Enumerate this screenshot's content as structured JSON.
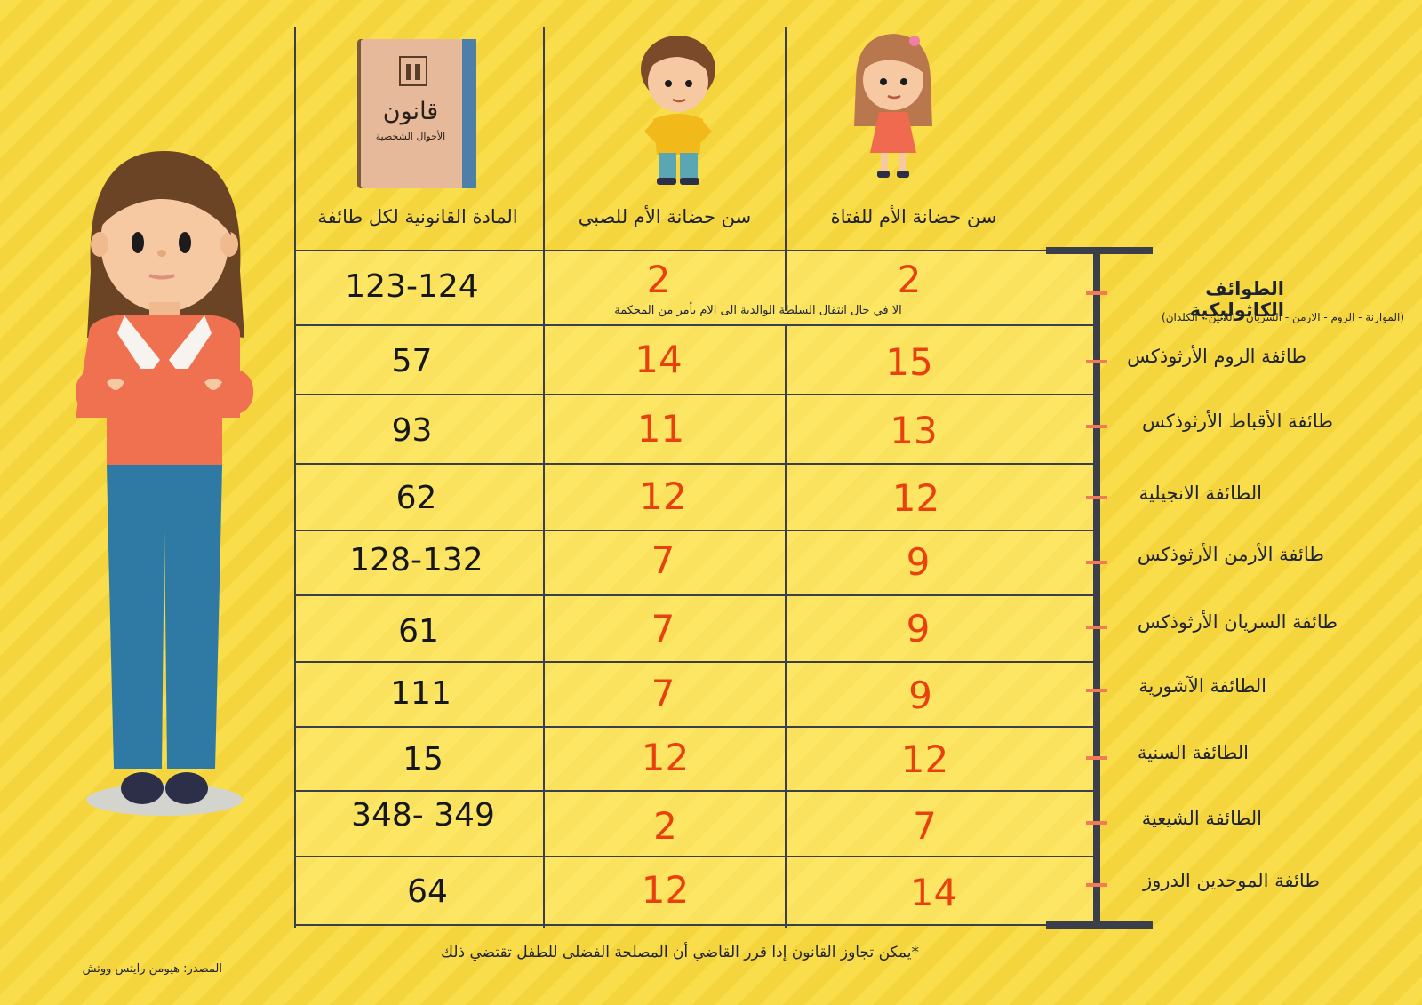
{
  "headers": {
    "girl": "سن حضانة الأم للفتاة",
    "boy": "سن حضانة الأم للصبي",
    "article": "المادة القانونية لكل طائفة"
  },
  "book": {
    "title": "قانون",
    "subtitle": "الأحوال الشخصية"
  },
  "rows": [
    {
      "sect": "الطوائف الكاثوليكية",
      "girl": "2",
      "boy": "2",
      "article": "123-124"
    },
    {
      "sect": "طائفة الروم الأرثوذكس",
      "girl": "15",
      "boy": "14",
      "article": "57"
    },
    {
      "sect": "طائفة الأقباط الأرثوذكس",
      "girl": "13",
      "boy": "11",
      "article": "93"
    },
    {
      "sect": "الطائفة الانجيلية",
      "girl": "12",
      "boy": "12",
      "article": "62"
    },
    {
      "sect": "طائفة الأرمن الأرثوذكس",
      "girl": "9",
      "boy": "7",
      "article": "128-132"
    },
    {
      "sect": "طائفة السريان الأرثوذكس",
      "girl": "9",
      "boy": "7",
      "article": "61"
    },
    {
      "sect": "الطائفة الآشورية",
      "girl": "9",
      "boy": "7",
      "article": "111"
    },
    {
      "sect": "الطائفة السنية",
      "girl": "12",
      "boy": "12",
      "article": "15"
    },
    {
      "sect": "الطائفة الشيعية",
      "girl": "7",
      "boy": "2",
      "article": "348- 349"
    },
    {
      "sect": "طائفة الموحدين الدروز",
      "girl": "14",
      "boy": "12",
      "article": "64"
    }
  ],
  "catholic_note": "الا في حال انتقال السلطة الوالدية الى الام بأمر من المحكمة",
  "catholic_sub": "(الموارنة - الروم - الارمن - السريان - اللاتين - الكلدان)",
  "footnote": "*يمكن تجاوز القانون إذا قرر القاضي أن المصلحة الفضلى للطفل تقتضي ذلك",
  "source": "المصدر: هيومن رايتس ووتش",
  "colors": {
    "background": "#f9dd4a",
    "number_red": "#e8400f",
    "line": "#3a3f4b",
    "tick": "#f07a5a"
  }
}
